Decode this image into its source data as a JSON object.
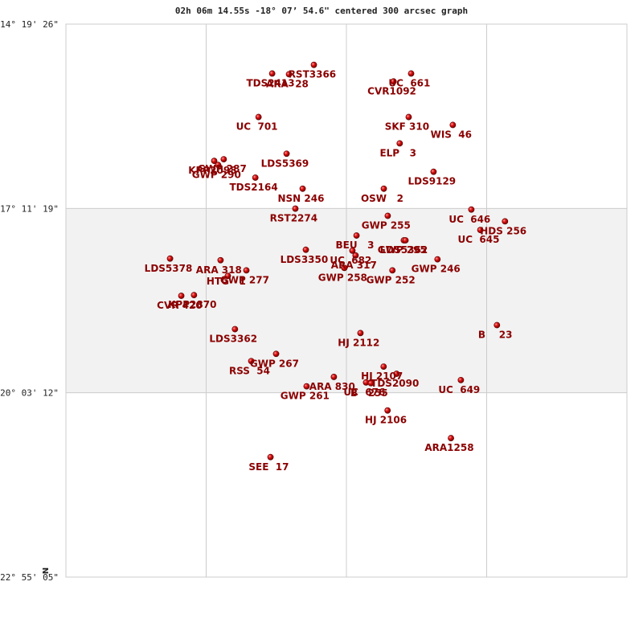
{
  "chart_data": {
    "type": "scatter",
    "title": "02h 06m 14.55s -18° 07’ 54.6\" centered 300 arcsec graph",
    "compass": "N",
    "xlim": [
      0,
      300
    ],
    "ylim": [
      0,
      300
    ],
    "y_ticks": [
      {
        "label": "-14° 19' 26\"",
        "value": 0
      },
      {
        "label": "-17° 11' 19\"",
        "value": 100
      },
      {
        "label": "-20° 03' 12\"",
        "value": 200
      },
      {
        "label": "-22° 55' 05\"",
        "value": 300
      }
    ],
    "x_gridlines": [
      75,
      150,
      225
    ],
    "band": [
      100,
      200
    ],
    "stars": [
      {
        "name": "RST3366",
        "x": 132.6,
        "y": 22.1,
        "lx": 131.7,
        "ly": 29.1
      },
      {
        "name": "TDS2413",
        "x": 110.3,
        "y": 26.8,
        "lx": 109.4,
        "ly": 33.8
      },
      {
        "name": "ARA  28",
        "x": 119.3,
        "y": 27.2,
        "lx": 118.4,
        "ly": 34.2
      },
      {
        "name": "UC  661",
        "x": 184.6,
        "y": 26.8,
        "lx": 183.7,
        "ly": 33.8
      },
      {
        "name": "CVR1092",
        "x": 175.2,
        "y": 31.1,
        "lx": 174.3,
        "ly": 38.1
      },
      {
        "name": "UC  701",
        "x": 103.0,
        "y": 50.4,
        "lx": 102.1,
        "ly": 57.4
      },
      {
        "name": "SKF 310",
        "x": 183.3,
        "y": 50.4,
        "lx": 182.4,
        "ly": 57.4
      },
      {
        "name": "WIS  46",
        "x": 206.9,
        "y": 54.7,
        "lx": 206.0,
        "ly": 61.7
      },
      {
        "name": "ELP   3",
        "x": 178.5,
        "y": 64.7,
        "lx": 177.6,
        "ly": 71.7
      },
      {
        "name": "LDS5369",
        "x": 118.0,
        "y": 70.3,
        "lx": 117.1,
        "ly": 77.3
      },
      {
        "name": "KPP2098",
        "x": 79.3,
        "y": 74.2,
        "lx": 78.4,
        "ly": 81.2
      },
      {
        "name": "GWP 287",
        "x": 84.4,
        "y": 73.3,
        "lx": 83.5,
        "ly": 80.3
      },
      {
        "name": "GWP 290",
        "x": 81.4,
        "y": 76.4,
        "lx": 80.5,
        "ly": 83.4
      },
      {
        "name": "LDS9129",
        "x": 196.6,
        "y": 80.1,
        "lx": 195.7,
        "ly": 87.1
      },
      {
        "name": "TDS2164",
        "x": 101.3,
        "y": 83.3,
        "lx": 100.4,
        "ly": 90.3
      },
      {
        "name": "NSN 246",
        "x": 126.6,
        "y": 89.3,
        "lx": 125.7,
        "ly": 96.3
      },
      {
        "name": "OSW   2",
        "x": 170.0,
        "y": 89.3,
        "lx": 169.1,
        "ly": 96.3
      },
      {
        "name": "RST2274",
        "x": 122.7,
        "y": 100.1,
        "lx": 121.8,
        "ly": 107.1
      },
      {
        "name": "UC  646",
        "x": 216.8,
        "y": 100.6,
        "lx": 215.9,
        "ly": 107.6
      },
      {
        "name": "GWP 255",
        "x": 172.1,
        "y": 104.0,
        "lx": 171.2,
        "ly": 111.0
      },
      {
        "name": "HDS 256",
        "x": 234.8,
        "y": 107.0,
        "lx": 233.9,
        "ly": 114.0
      },
      {
        "name": "UC  645",
        "x": 221.6,
        "y": 111.7,
        "lx": 220.7,
        "ly": 118.7
      },
      {
        "name": "GWP 295",
        "x": 180.7,
        "y": 117.3,
        "lx": 179.8,
        "ly": 124.3
      },
      {
        "name": "BEU   3",
        "x": 155.4,
        "y": 114.7,
        "lx": 154.5,
        "ly": 121.7
      },
      {
        "name": "LDS5362",
        "x": 181.6,
        "y": 117.3,
        "lx": 180.7,
        "ly": 124.3
      },
      {
        "name": "LDS3350",
        "x": 128.3,
        "y": 122.4,
        "lx": 127.4,
        "ly": 129.4
      },
      {
        "name": "UC  682",
        "x": 153.2,
        "y": 122.9,
        "lx": 152.3,
        "ly": 129.9
      },
      {
        "name": "ARA 317",
        "x": 154.9,
        "y": 125.5,
        "lx": 154.0,
        "ly": 132.5
      },
      {
        "name": "GWP 258",
        "x": 148.9,
        "y": 132.3,
        "lx": 148.0,
        "ly": 139.3
      },
      {
        "name": "GWP 252",
        "x": 174.6,
        "y": 133.6,
        "lx": 173.7,
        "ly": 140.6
      },
      {
        "name": "GWP 246",
        "x": 198.7,
        "y": 127.6,
        "lx": 197.8,
        "ly": 134.6
      },
      {
        "name": "LDS5378",
        "x": 55.7,
        "y": 127.2,
        "lx": 54.8,
        "ly": 134.2
      },
      {
        "name": "ARA 318",
        "x": 82.7,
        "y": 128.1,
        "lx": 81.8,
        "ly": 135.1
      },
      {
        "name": "GWP 277",
        "x": 96.5,
        "y": 133.6,
        "lx": 95.6,
        "ly": 140.6
      },
      {
        "name": "HTG   1",
        "x": 86.6,
        "y": 136.6,
        "lx": 85.7,
        "ly": 141.2
      },
      {
        "name": "CVR 420",
        "x": 61.7,
        "y": 147.4,
        "lx": 60.8,
        "ly": 154.4
      },
      {
        "name": "KPP2870",
        "x": 68.5,
        "y": 147.0,
        "lx": 67.6,
        "ly": 154.0
      },
      {
        "name": "B    23",
        "x": 230.5,
        "y": 163.3,
        "lx": 229.6,
        "ly": 170.3
      },
      {
        "name": "LDS3362",
        "x": 90.4,
        "y": 165.5,
        "lx": 89.5,
        "ly": 172.5
      },
      {
        "name": "HJ 2112",
        "x": 157.5,
        "y": 167.6,
        "lx": 156.6,
        "ly": 174.6
      },
      {
        "name": "GWP 267",
        "x": 112.4,
        "y": 178.9,
        "lx": 111.5,
        "ly": 185.9
      },
      {
        "name": "RSS  54",
        "x": 99.1,
        "y": 182.8,
        "lx": 98.2,
        "ly": 189.8
      },
      {
        "name": "HJ 2107",
        "x": 169.9,
        "y": 185.8,
        "lx": 169.0,
        "ly": 192.8
      },
      {
        "name": "TDS2090",
        "x": 176.8,
        "y": 189.7,
        "lx": 175.9,
        "ly": 196.7
      },
      {
        "name": "UC  649",
        "x": 211.2,
        "y": 193.1,
        "lx": 210.3,
        "ly": 200.1
      },
      {
        "name": "ARA 830",
        "x": 143.3,
        "y": 191.4,
        "lx": 142.4,
        "ly": 198.4
      },
      {
        "name": "UC  676",
        "x": 160.5,
        "y": 194.4,
        "lx": 159.6,
        "ly": 201.4
      },
      {
        "name": "B   255",
        "x": 163.1,
        "y": 194.8,
        "lx": 162.2,
        "ly": 201.8
      },
      {
        "name": "GWP 261",
        "x": 128.7,
        "y": 196.5,
        "lx": 127.8,
        "ly": 203.5
      },
      {
        "name": "HJ 2106",
        "x": 172.0,
        "y": 209.6,
        "lx": 171.1,
        "ly": 216.6
      },
      {
        "name": "ARA1258",
        "x": 205.9,
        "y": 224.6,
        "lx": 205.0,
        "ly": 231.6
      },
      {
        "name": "SEE  17",
        "x": 109.4,
        "y": 234.9,
        "lx": 108.5,
        "ly": 241.9
      }
    ]
  }
}
